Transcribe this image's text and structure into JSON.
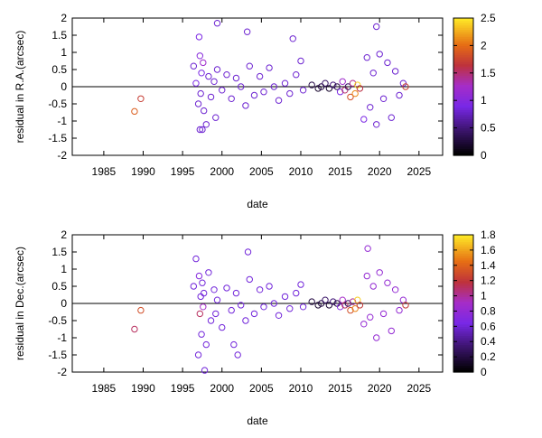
{
  "chart_data": [
    {
      "type": "scatter",
      "xlabel": "date",
      "ylabel": "residual in R.A.(arcsec)",
      "xlim": [
        1981,
        2028
      ],
      "ylim": [
        -2,
        2
      ],
      "xticks": [
        "1985",
        "1990",
        "1995",
        "2000",
        "2005",
        "2010",
        "2015",
        "2020",
        "2025"
      ],
      "yticks": [
        "-2",
        "-1.5",
        "-1",
        "-0.5",
        "0",
        "0.5",
        "1",
        "1.5",
        "2"
      ],
      "colorbar": {
        "min": 0,
        "max": 2.5,
        "ticks": [
          "0",
          "0.5",
          "1",
          "1.5",
          "2",
          "2.5"
        ]
      },
      "zero_line": true,
      "grid": false,
      "marker": "open-circle",
      "x": [
        1988.9,
        1989.7,
        1996.4,
        1996.7,
        1997.0,
        1997.1,
        1997.2,
        1997.3,
        1997.4,
        1997.5,
        1997.6,
        1997.7,
        1998.0,
        1998.3,
        1998.6,
        1999.0,
        1999.2,
        1999.4,
        2000.0,
        2000.6,
        2001.2,
        2001.8,
        2002.4,
        2003.0,
        2003.5,
        2004.1,
        2004.8,
        2005.3,
        2006.0,
        2006.6,
        2007.2,
        2008.0,
        2008.6,
        2009.4,
        2010.0,
        2010.3,
        2011.4,
        2012.2,
        2012.6,
        2013.1,
        2013.6,
        2014.1,
        2014.6,
        2015.0,
        2015.3,
        2015.6,
        2016.0,
        2016.3,
        2016.6,
        2016.9,
        2017.2,
        2017.5,
        2018.0,
        2018.4,
        2018.8,
        2019.2,
        2019.6,
        2020.0,
        2020.5,
        2021.0,
        2021.5,
        2022.0,
        2022.5,
        2023.0,
        2023.3,
        1999.4,
        2009.0,
        2019.6,
        2003.2,
        1997.2
      ],
      "y": [
        -0.72,
        -0.35,
        0.6,
        0.1,
        -0.5,
        1.45,
        0.9,
        -0.2,
        0.4,
        -1.25,
        0.7,
        -0.7,
        -1.1,
        0.3,
        -0.3,
        0.15,
        -0.9,
        0.5,
        -0.1,
        0.35,
        -0.35,
        0.25,
        0.0,
        -0.55,
        0.6,
        -0.25,
        0.3,
        -0.15,
        0.55,
        0.0,
        -0.4,
        0.1,
        -0.2,
        0.35,
        0.75,
        -0.1,
        0.05,
        -0.05,
        0.0,
        0.1,
        -0.05,
        0.05,
        0.0,
        -0.15,
        0.15,
        -0.1,
        0.0,
        -0.3,
        0.1,
        -0.2,
        0.05,
        -0.05,
        -0.95,
        0.85,
        -0.6,
        0.4,
        -1.1,
        0.95,
        -0.35,
        0.7,
        -0.9,
        0.45,
        -0.25,
        0.1,
        0.0,
        1.85,
        1.4,
        1.75,
        1.6,
        -1.25
      ],
      "c": [
        1.9,
        1.7,
        0.8,
        0.9,
        0.8,
        0.9,
        1.0,
        0.8,
        0.9,
        0.8,
        1.2,
        0.8,
        0.8,
        0.8,
        0.8,
        0.8,
        0.8,
        0.8,
        0.8,
        0.8,
        0.8,
        0.8,
        0.8,
        0.8,
        0.8,
        0.8,
        0.8,
        0.8,
        0.8,
        0.8,
        0.8,
        0.8,
        0.8,
        0.8,
        0.8,
        0.8,
        0.3,
        0.2,
        0.3,
        0.4,
        0.2,
        0.5,
        0.3,
        0.9,
        1.2,
        1.5,
        0.4,
        1.8,
        1.4,
        2.1,
        2.4,
        1.6,
        0.9,
        0.8,
        0.8,
        0.8,
        0.8,
        0.8,
        0.8,
        0.8,
        0.8,
        0.8,
        0.8,
        0.8,
        1.7,
        0.8,
        0.8,
        0.8,
        0.8,
        0.8
      ]
    },
    {
      "type": "scatter",
      "xlabel": "date",
      "ylabel": "residual in Dec.(arcsec)",
      "xlim": [
        1981,
        2028
      ],
      "ylim": [
        -2,
        2
      ],
      "xticks": [
        "1985",
        "1990",
        "1995",
        "2000",
        "2005",
        "2010",
        "2015",
        "2020",
        "2025"
      ],
      "yticks": [
        "-2",
        "-1.5",
        "-1",
        "-0.5",
        "0",
        "0.5",
        "1",
        "1.5",
        "2"
      ],
      "colorbar": {
        "min": 0,
        "max": 1.8,
        "ticks": [
          "0",
          "0.2",
          "0.4",
          "0.6",
          "0.8",
          "1",
          "1.2",
          "1.4",
          "1.6",
          "1.8"
        ]
      },
      "zero_line": true,
      "grid": false,
      "marker": "open-circle",
      "x": [
        1988.9,
        1989.7,
        1996.4,
        1996.7,
        1997.0,
        1997.1,
        1997.2,
        1997.3,
        1997.4,
        1997.5,
        1997.6,
        1997.7,
        1998.0,
        1998.3,
        1998.6,
        1999.0,
        1999.2,
        1999.4,
        2000.0,
        2000.6,
        2001.2,
        2001.8,
        2002.4,
        2003.0,
        2003.5,
        2004.1,
        2004.8,
        2005.3,
        2006.0,
        2006.6,
        2007.2,
        2008.0,
        2008.6,
        2009.4,
        2010.0,
        2010.3,
        2011.4,
        2012.2,
        2012.6,
        2013.1,
        2013.6,
        2014.1,
        2014.6,
        2015.0,
        2015.3,
        2015.6,
        2016.0,
        2016.3,
        2016.6,
        2016.9,
        2017.2,
        2017.5,
        2018.0,
        2018.4,
        2018.8,
        2019.2,
        2019.6,
        2020.0,
        2020.5,
        2021.0,
        2021.5,
        2022.0,
        2022.5,
        2023.0,
        2023.3,
        1997.8,
        2003.3,
        2002.0,
        2018.5,
        2001.5
      ],
      "y": [
        -0.75,
        -0.2,
        0.5,
        1.3,
        -1.5,
        0.8,
        -0.3,
        0.2,
        -0.9,
        0.6,
        -0.1,
        0.3,
        -1.2,
        0.9,
        -0.5,
        0.4,
        -0.3,
        0.1,
        -0.7,
        0.45,
        -0.2,
        0.3,
        -0.05,
        -0.5,
        0.7,
        -0.3,
        0.4,
        -0.1,
        0.5,
        0.0,
        -0.35,
        0.2,
        -0.15,
        0.3,
        0.55,
        -0.1,
        0.05,
        -0.05,
        0.0,
        0.1,
        -0.05,
        0.05,
        0.0,
        -0.1,
        0.1,
        -0.05,
        0.0,
        -0.2,
        0.05,
        -0.15,
        0.1,
        -0.05,
        -0.6,
        0.8,
        -0.4,
        0.5,
        -1.0,
        0.9,
        -0.3,
        0.6,
        -0.8,
        0.4,
        -0.2,
        0.1,
        -0.05,
        -1.95,
        1.5,
        -1.5,
        1.6,
        -1.2
      ],
      "c": [
        1.1,
        1.3,
        0.6,
        0.6,
        0.6,
        0.7,
        1.1,
        0.6,
        0.6,
        0.6,
        0.9,
        0.6,
        0.6,
        0.6,
        0.6,
        0.6,
        0.6,
        0.6,
        0.6,
        0.6,
        0.6,
        0.6,
        0.6,
        0.6,
        0.6,
        0.6,
        0.6,
        0.6,
        0.6,
        0.6,
        0.6,
        0.6,
        0.6,
        0.6,
        0.6,
        0.6,
        0.2,
        0.15,
        0.2,
        0.3,
        0.15,
        0.35,
        0.2,
        0.7,
        0.9,
        1.1,
        0.3,
        1.3,
        1.0,
        1.5,
        1.7,
        1.2,
        0.8,
        0.8,
        0.8,
        0.8,
        0.8,
        0.8,
        0.8,
        0.8,
        0.8,
        0.8,
        0.8,
        0.8,
        1.2,
        0.6,
        0.6,
        0.6,
        0.8,
        0.6
      ]
    }
  ]
}
